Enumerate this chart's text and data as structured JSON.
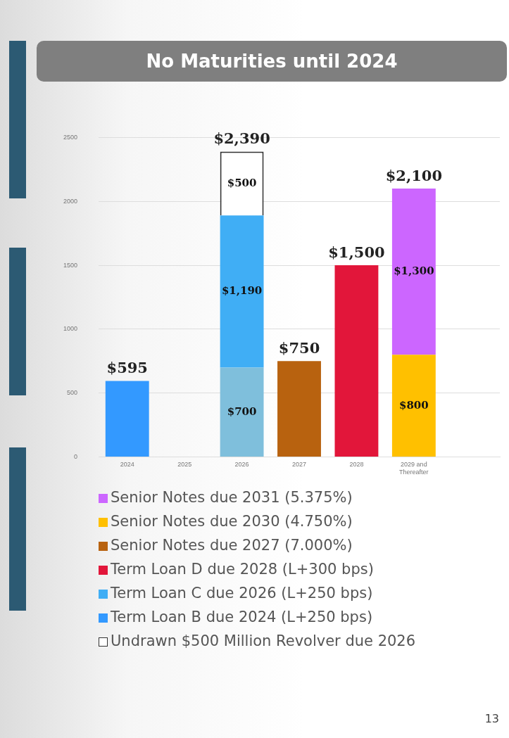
{
  "chart_data": {
    "type": "bar",
    "title": "No Maturities until 2024",
    "stacked": true,
    "categories": [
      "2024",
      "2025",
      "2026",
      "2027",
      "2028",
      "2029 and Thereafter",
      null
    ],
    "series": [
      {
        "name": "Term Loan B due 2024 (L+250 bps)",
        "color": "#3399ff",
        "values": [
          595,
          null,
          null,
          null,
          null,
          null,
          null
        ],
        "value_labels": [
          null,
          null,
          null,
          null,
          null,
          null,
          null
        ]
      },
      {
        "color": "#7fbfdc",
        "values": [
          null,
          null,
          700,
          null,
          null,
          null,
          null
        ],
        "value_labels": [
          null,
          null,
          "$700",
          null,
          null,
          null,
          null
        ]
      },
      {
        "name": "Term Loan C due 2026 (L+250 bps)",
        "color": "#40aef5",
        "values": [
          null,
          null,
          1190,
          null,
          null,
          null,
          null
        ],
        "value_labels": [
          null,
          null,
          "$1,190",
          null,
          null,
          null,
          null
        ]
      },
      {
        "name": "Term Loan D due 2028 (L+300 bps)",
        "color": "#e2163a",
        "values": [
          null,
          null,
          null,
          null,
          1500,
          null,
          null
        ],
        "value_labels": [
          null,
          null,
          null,
          null,
          null,
          null,
          null
        ]
      },
      {
        "name": "Senior Notes due 2027 (7.000%)",
        "color": "#b8620f",
        "values": [
          null,
          null,
          null,
          750,
          null,
          null,
          null
        ],
        "value_labels": [
          null,
          null,
          null,
          null,
          null,
          null,
          null
        ]
      },
      {
        "name": "Senior Notes due 2030 (4.750%)",
        "color": "#ffc000",
        "values": [
          null,
          null,
          null,
          null,
          null,
          800,
          null
        ],
        "value_labels": [
          null,
          null,
          null,
          null,
          null,
          "$800",
          null
        ]
      },
      {
        "name": "Senior Notes due 2031 (5.375%)",
        "color": "#cc66ff",
        "values": [
          null,
          null,
          null,
          null,
          null,
          1300,
          null
        ],
        "value_labels": [
          null,
          null,
          null,
          null,
          null,
          "$1,300",
          null
        ]
      },
      {
        "name": "Undrawn $500 Million Revolver due 2026",
        "color": "#ffffff",
        "values": [
          null,
          null,
          500,
          null,
          null,
          null,
          null
        ],
        "value_labels": [
          null,
          null,
          "$500",
          null,
          null,
          null,
          null
        ]
      }
    ],
    "totals": [
      "$595",
      null,
      "$2,390",
      "$750",
      "$1,500",
      "$2,100",
      null
    ],
    "ylim": [
      0,
      2500
    ],
    "yticks": [
      0,
      500,
      1000,
      1500,
      2000,
      2500
    ],
    "grid": "y",
    "legend": "bottom",
    "annotations": [
      "13"
    ]
  }
}
